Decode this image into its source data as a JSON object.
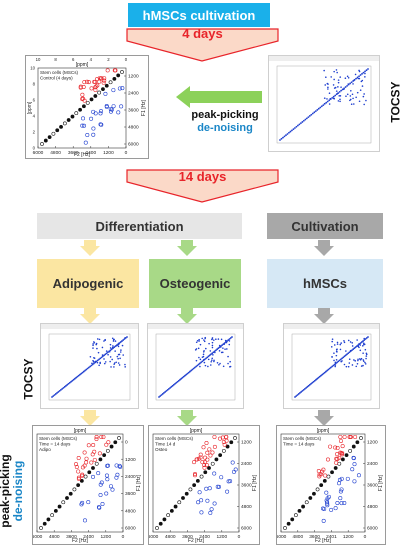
{
  "header": {
    "title": "hMSCs cultivation"
  },
  "arrow_top": {
    "label": "4 days"
  },
  "arrow_mid": {
    "label": "14 days"
  },
  "process": {
    "line1": "peak-picking",
    "line2": "de-noising"
  },
  "side_labels": {
    "tocsy_top": "TOCSY",
    "tocsy_bottom": "TOCSY",
    "peak_line1": "peak-picking",
    "peak_line2": "de-noising"
  },
  "stages": {
    "differentiation": "Differentiation",
    "cultivation": "Cultivation",
    "adipogenic": "Adipogenic",
    "osteogenic": "Osteogenic",
    "hmscs": "hMSCs"
  },
  "plot_top": {
    "legend": [
      "Stem cells (MSCs)",
      "Control (4 days)"
    ],
    "xlabel": "F2 [Hz]",
    "ylabel": "F1 [Hz]",
    "xlabel_top": "[ppm]",
    "ylabel_left": "[ppm]",
    "xticks": [
      "6000",
      "4800",
      "3600",
      "2400",
      "1200",
      "0"
    ],
    "yticks": [
      "1200",
      "2400",
      "3600",
      "4800",
      "6000"
    ],
    "ppm_ticks": [
      "10",
      "8",
      "6",
      "4",
      "2",
      "0"
    ]
  },
  "plot_adipo": {
    "legend": [
      "Stem cells (MSCs)",
      "Time = 14 days",
      "Adipo"
    ],
    "xlabel": "F2 [Hz]",
    "ylabel": "F1 [Hz]",
    "xlabel_top": "[ppm]",
    "xticks": [
      "6000",
      "4800",
      "3600",
      "2400",
      "1200",
      "0"
    ],
    "yticks": [
      "0",
      "1200",
      "2400",
      "3600",
      "4800",
      "6000"
    ]
  },
  "plot_osteo": {
    "legend": [
      "Stem cells (MSCs)",
      "Time 14 d",
      "Osteo"
    ],
    "xlabel": "F2 [Hz]",
    "ylabel": "F1 [Hz]",
    "xlabel_top": "[ppm]",
    "xticks": [
      "6000",
      "4800",
      "3600",
      "2400",
      "1200",
      "0"
    ],
    "yticks": [
      "1200",
      "2400",
      "3600",
      "4800",
      "6000"
    ]
  },
  "plot_hmsc": {
    "legend": [
      "Stem cells (MSCs)",
      "Time = 14 days"
    ],
    "xlabel": "F2 [Hz]",
    "ylabel": "F1 [Hz]",
    "xlabel_top": "[ppm]",
    "xticks": [
      "6000",
      "4800",
      "3600",
      "2401",
      "1200",
      "0"
    ],
    "yticks": [
      "1200",
      "2400",
      "3600",
      "4800",
      "6000"
    ]
  },
  "colors": {
    "title_bg": "#1ab0ea",
    "arrow_fill": "#fbd9c8",
    "arrow_stroke": "#e8242a",
    "green_arrow": "#8cd15a",
    "denoise": "#1a86c7",
    "diff_bg": "#e6e6e6",
    "cult_bg": "#a8a8a8",
    "adipo_bg": "#fbe6a2",
    "osteo_bg": "#a8d987",
    "hmsc_bg": "#d6e8f5",
    "red": "#e8242a",
    "blue": "#1f3fcf"
  }
}
